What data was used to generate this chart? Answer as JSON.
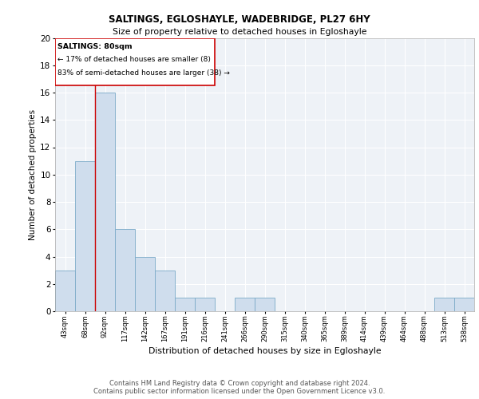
{
  "title1": "SALTINGS, EGLOSHAYLE, WADEBRIDGE, PL27 6HY",
  "title2": "Size of property relative to detached houses in Egloshayle",
  "xlabel": "Distribution of detached houses by size in Egloshayle",
  "ylabel": "Number of detached properties",
  "bar_color": "#cfdded",
  "bar_edge_color": "#7aaac8",
  "categories": [
    "43sqm",
    "68sqm",
    "92sqm",
    "117sqm",
    "142sqm",
    "167sqm",
    "191sqm",
    "216sqm",
    "241sqm",
    "266sqm",
    "290sqm",
    "315sqm",
    "340sqm",
    "365sqm",
    "389sqm",
    "414sqm",
    "439sqm",
    "464sqm",
    "488sqm",
    "513sqm",
    "538sqm"
  ],
  "values": [
    3,
    11,
    16,
    6,
    4,
    3,
    1,
    1,
    0,
    1,
    1,
    0,
    0,
    0,
    0,
    0,
    0,
    0,
    0,
    1,
    1
  ],
  "ylim": [
    0,
    20
  ],
  "yticks": [
    0,
    2,
    4,
    6,
    8,
    10,
    12,
    14,
    16,
    18,
    20
  ],
  "annotation_title": "SALTINGS: 80sqm",
  "annotation_line1": "← 17% of detached houses are smaller (8)",
  "annotation_line2": "83% of semi-detached houses are larger (38) →",
  "vline_color": "#cc0000",
  "box_edge_color": "#cc0000",
  "footer": "Contains HM Land Registry data © Crown copyright and database right 2024.\nContains public sector information licensed under the Open Government Licence v3.0.",
  "background_color": "#eef2f7",
  "grid_color": "#ffffff"
}
